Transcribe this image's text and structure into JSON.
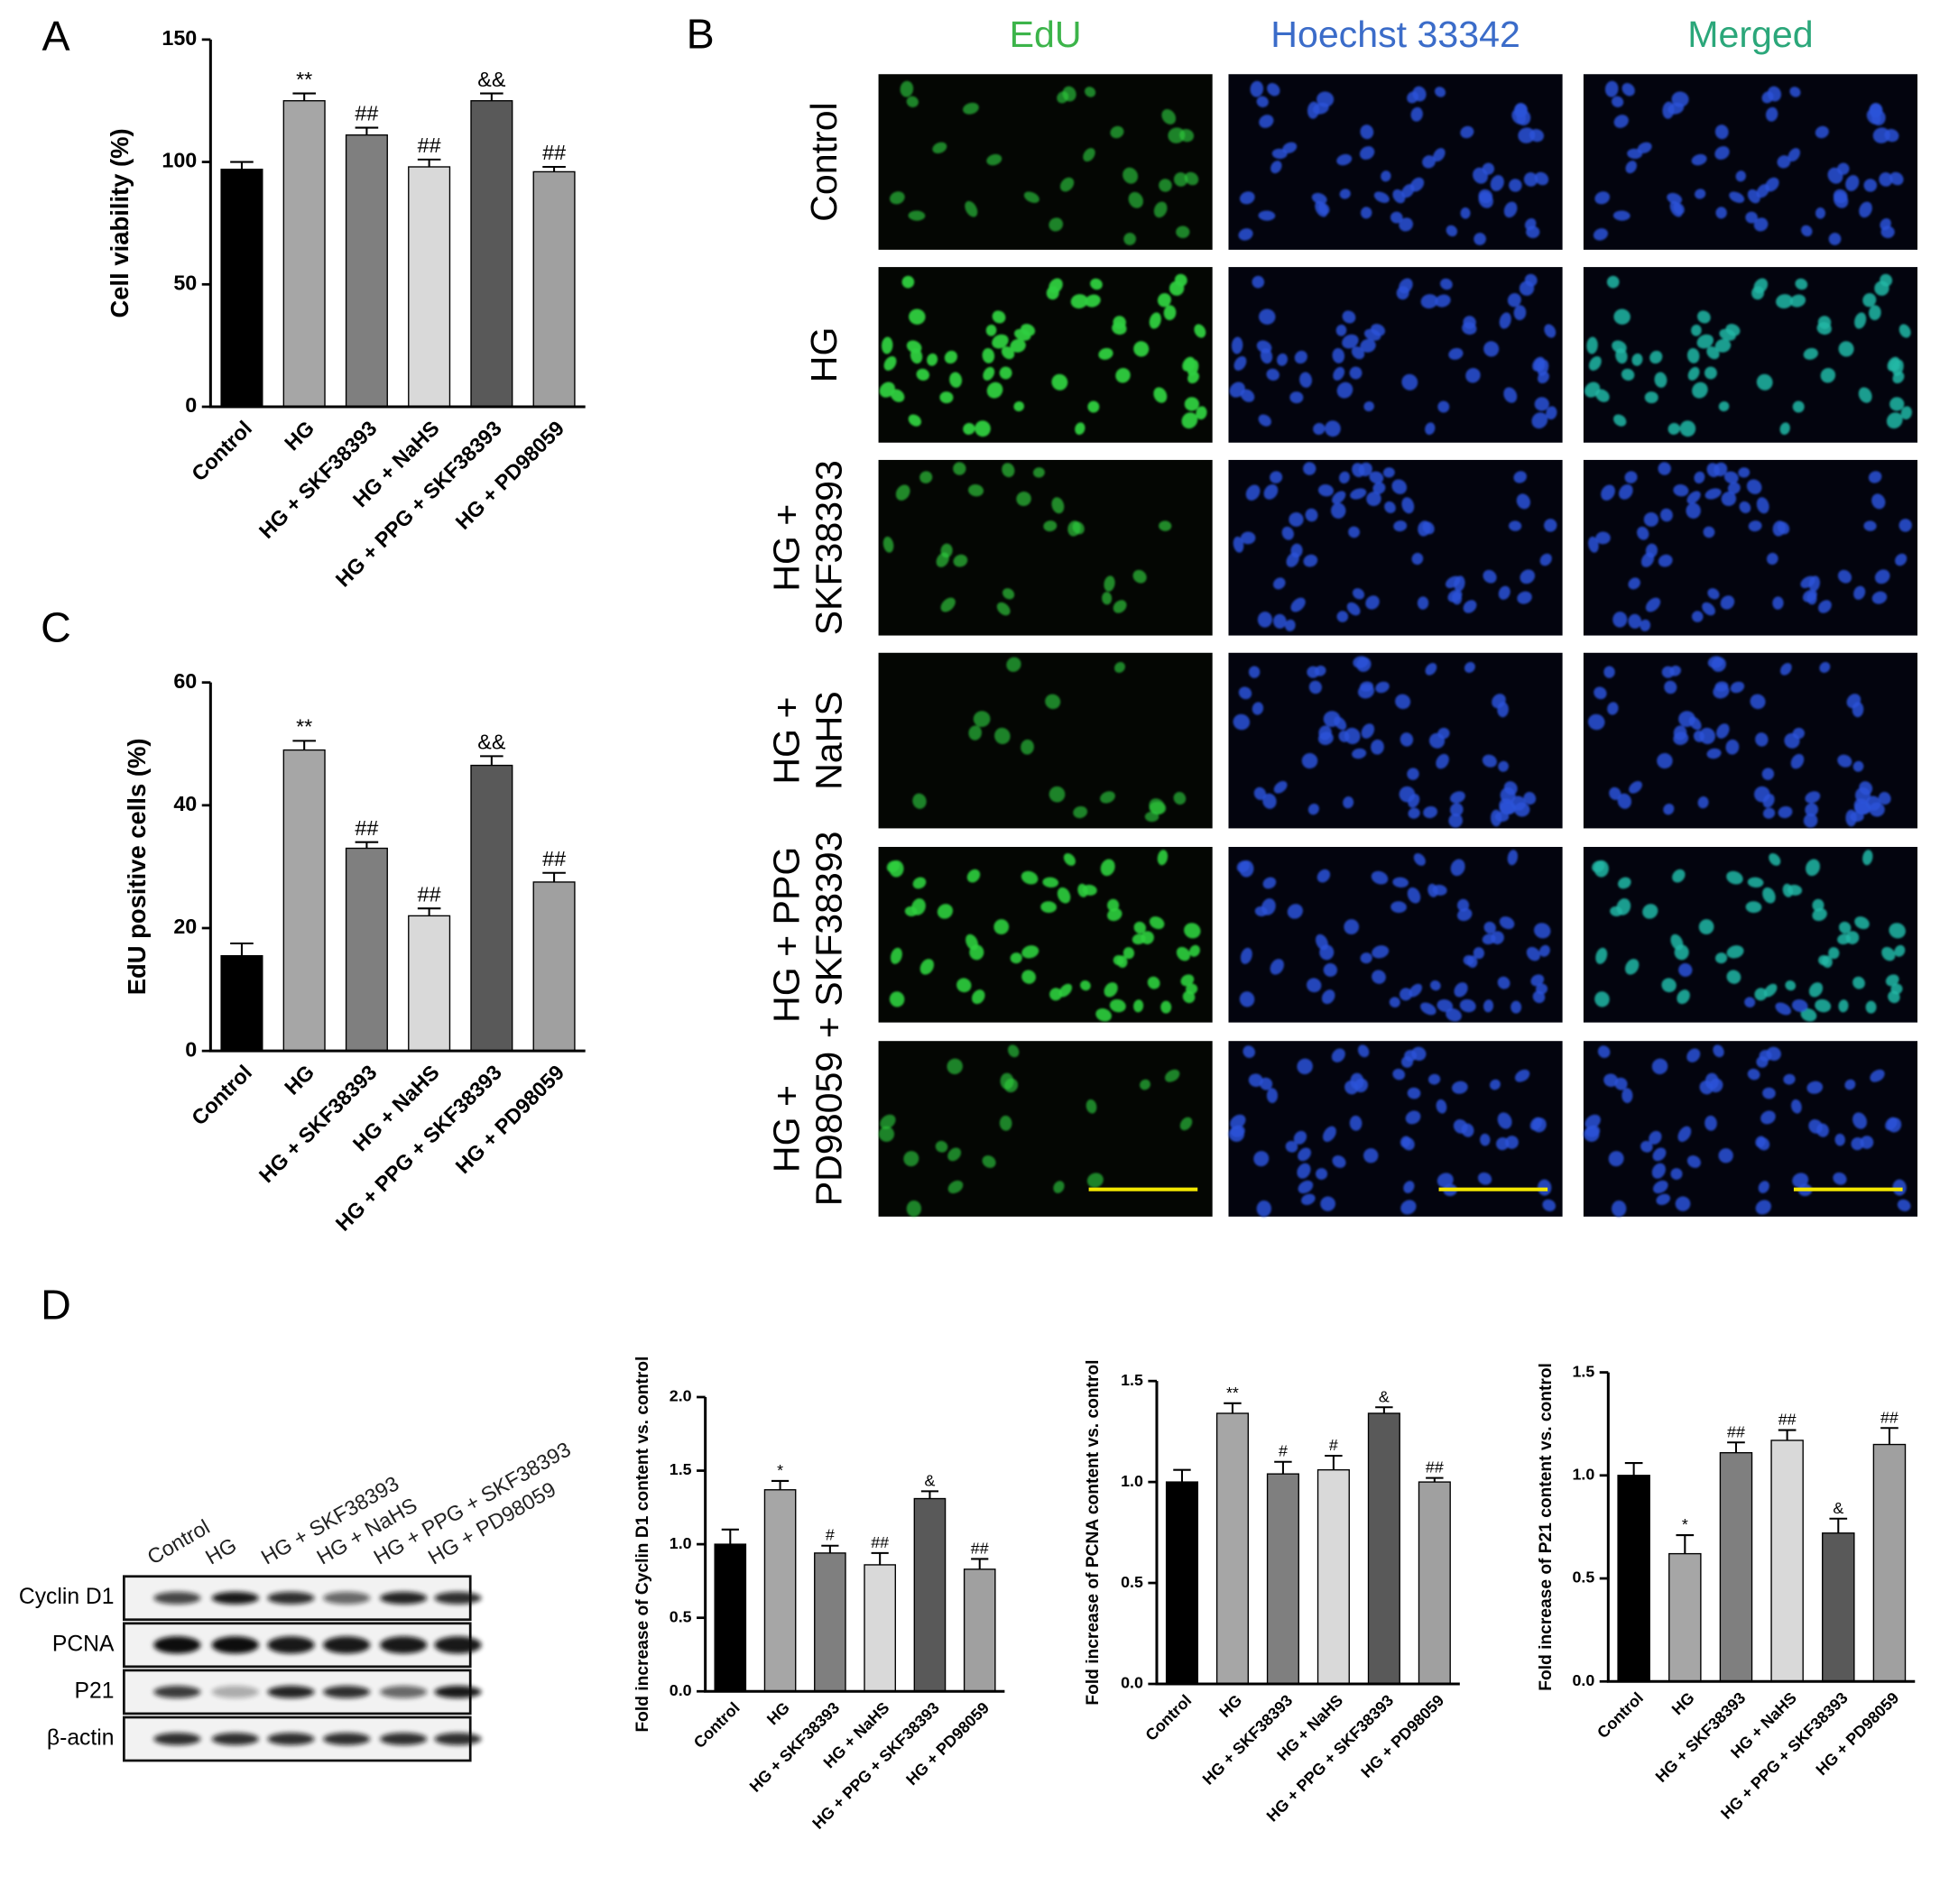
{
  "chart_data": [
    {
      "type": "bar",
      "panel": "A",
      "y_label": "Cell viability (%)",
      "categories": [
        "Control",
        "HG",
        "HG + SKF38393",
        "HG + NaHS",
        "HG + PPG + SKF38393",
        "HG + PD98059"
      ],
      "values": [
        97,
        125,
        111,
        98,
        125,
        96
      ],
      "errors": [
        3,
        3,
        3,
        3,
        3,
        2
      ],
      "annotations": [
        null,
        "**",
        "##",
        "##",
        "&&",
        "##"
      ],
      "colors": [
        "#000000",
        "#a6a6a6",
        "#7f7f7f",
        "#d9d9d9",
        "#595959",
        "#a0a0a0"
      ],
      "ylim": [
        0,
        150
      ],
      "yticks": [
        0,
        50,
        100,
        150
      ]
    },
    {
      "type": "bar",
      "panel": "C",
      "y_label": "EdU positive cells (%)",
      "categories": [
        "Control",
        "HG",
        "HG + SKF38393",
        "HG + NaHS",
        "HG + PPG + SKF38393",
        "HG + PD98059"
      ],
      "values": [
        15.5,
        49,
        33,
        22,
        46.5,
        27.5
      ],
      "errors": [
        2,
        1.5,
        1,
        1.2,
        1.5,
        1.5
      ],
      "annotations": [
        null,
        "**",
        "##",
        "##",
        "&&",
        "##"
      ],
      "colors": [
        "#000000",
        "#a6a6a6",
        "#7f7f7f",
        "#d9d9d9",
        "#595959",
        "#a0a0a0"
      ],
      "ylim": [
        0,
        60
      ],
      "yticks": [
        0,
        20,
        40,
        60
      ]
    },
    {
      "type": "bar",
      "y_label": "Fold increase of Cyclin D1 content vs. control",
      "categories": [
        "Control",
        "HG",
        "HG + SKF38393",
        "HG + NaHS",
        "HG + PPG + SKF38393",
        "HG + PD98059"
      ],
      "values": [
        1.0,
        1.37,
        0.94,
        0.86,
        1.31,
        0.83
      ],
      "errors": [
        0.1,
        0.06,
        0.05,
        0.08,
        0.05,
        0.07
      ],
      "annotations": [
        null,
        "*",
        "#",
        "##",
        "&",
        "##"
      ],
      "colors": [
        "#000000",
        "#a6a6a6",
        "#7f7f7f",
        "#d9d9d9",
        "#595959",
        "#a0a0a0"
      ],
      "ylim": [
        0,
        2.0
      ],
      "yticks": [
        {
          "value": 0,
          "label": "0.0"
        },
        0.5,
        {
          "value": 1,
          "label": "1.0"
        },
        1.5,
        {
          "value": 2,
          "label": "2.0"
        }
      ]
    },
    {
      "type": "bar",
      "y_label": "Fold increase of PCNA content vs. control",
      "categories": [
        "Control",
        "HG",
        "HG + SKF38393",
        "HG + NaHS",
        "HG + PPG + SKF38393",
        "HG + PD98059"
      ],
      "values": [
        1.0,
        1.34,
        1.04,
        1.06,
        1.34,
        1.0
      ],
      "errors": [
        0.06,
        0.05,
        0.06,
        0.07,
        0.03,
        0.02
      ],
      "annotations": [
        null,
        "**",
        "#",
        "#",
        "&",
        "##"
      ],
      "colors": [
        "#000000",
        "#a6a6a6",
        "#7f7f7f",
        "#d9d9d9",
        "#595959",
        "#a0a0a0"
      ],
      "ylim": [
        0,
        1.5
      ],
      "yticks": [
        {
          "value": 0,
          "label": "0.0"
        },
        0.5,
        {
          "value": 1,
          "label": "1.0"
        },
        1.5
      ]
    },
    {
      "type": "bar",
      "y_label": "Fold increase of P21 content vs. control",
      "categories": [
        "Control",
        "HG",
        "HG + SKF38393",
        "HG + NaHS",
        "HG + PPG + SKF38393",
        "HG + PD98059"
      ],
      "values": [
        1.0,
        0.62,
        1.11,
        1.17,
        0.72,
        1.15
      ],
      "errors": [
        0.06,
        0.09,
        0.05,
        0.05,
        0.07,
        0.08
      ],
      "annotations": [
        null,
        "*",
        "##",
        "##",
        "&",
        "##"
      ],
      "colors": [
        "#000000",
        "#a6a6a6",
        "#7f7f7f",
        "#d9d9d9",
        "#595959",
        "#a0a0a0"
      ],
      "ylim": [
        0,
        1.5
      ],
      "yticks": [
        {
          "value": 0,
          "label": "0.0"
        },
        0.5,
        {
          "value": 1,
          "label": "1.0"
        },
        1.5
      ]
    }
  ],
  "micrographs": {
    "panel": "B",
    "columns": [
      "EdU",
      "Hoechst 33342",
      "Merged"
    ],
    "rows": [
      [
        "Control"
      ],
      [
        "HG"
      ],
      [
        "HG +",
        "SKF38393"
      ],
      [
        "HG +",
        "NaHS"
      ],
      [
        "HG + PPG",
        "+ SKF38393"
      ],
      [
        "HG +",
        "PD98059"
      ]
    ]
  },
  "western_blot": {
    "panel": "D",
    "lanes": [
      "Control",
      "HG",
      "HG + SKF38393",
      "HG + NaHS",
      "HG + PPG + SKF38393",
      "HG + PD98059"
    ],
    "proteins": [
      "Cyclin D1",
      "PCNA",
      "P21",
      "β-actin"
    ]
  }
}
